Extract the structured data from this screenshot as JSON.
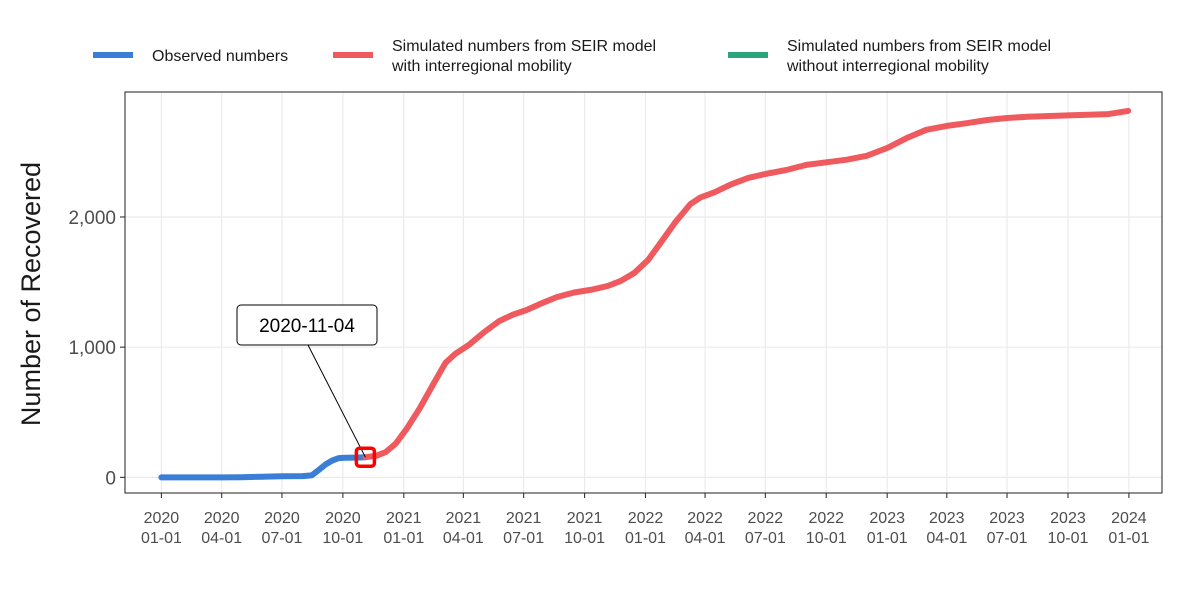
{
  "chart_data": {
    "type": "line",
    "ylabel": "Number of Recovered",
    "xlabel": "",
    "xlim": [
      "2019-11-07",
      "2024-02-20"
    ],
    "ylim": [
      -120,
      2960
    ],
    "grid": true,
    "legend_position": "top",
    "x_ticks": [
      {
        "date": "2020-01-01",
        "line1": "2020",
        "line2": "01-01"
      },
      {
        "date": "2020-04-01",
        "line1": "2020",
        "line2": "04-01"
      },
      {
        "date": "2020-07-01",
        "line1": "2020",
        "line2": "07-01"
      },
      {
        "date": "2020-10-01",
        "line1": "2020",
        "line2": "10-01"
      },
      {
        "date": "2021-01-01",
        "line1": "2021",
        "line2": "01-01"
      },
      {
        "date": "2021-04-01",
        "line1": "2021",
        "line2": "04-01"
      },
      {
        "date": "2021-07-01",
        "line1": "2021",
        "line2": "07-01"
      },
      {
        "date": "2021-10-01",
        "line1": "2021",
        "line2": "10-01"
      },
      {
        "date": "2022-01-01",
        "line1": "2022",
        "line2": "01-01"
      },
      {
        "date": "2022-04-01",
        "line1": "2022",
        "line2": "04-01"
      },
      {
        "date": "2022-07-01",
        "line1": "2022",
        "line2": "07-01"
      },
      {
        "date": "2022-10-01",
        "line1": "2022",
        "line2": "10-01"
      },
      {
        "date": "2023-01-01",
        "line1": "2023",
        "line2": "01-01"
      },
      {
        "date": "2023-04-01",
        "line1": "2023",
        "line2": "04-01"
      },
      {
        "date": "2023-07-01",
        "line1": "2023",
        "line2": "07-01"
      },
      {
        "date": "2023-10-01",
        "line1": "2023",
        "line2": "10-01"
      },
      {
        "date": "2024-01-01",
        "line1": "2024",
        "line2": "01-01"
      }
    ],
    "y_ticks": [
      {
        "value": 0,
        "label": "0"
      },
      {
        "value": 1000,
        "label": "1,000"
      },
      {
        "value": 2000,
        "label": "2,000"
      }
    ],
    "series": [
      {
        "name": "Observed numbers",
        "name_lines": [
          "Observed numbers"
        ],
        "color": "#3a7fd5",
        "points": [
          [
            "2020-01-01",
            0
          ],
          [
            "2020-02-01",
            0
          ],
          [
            "2020-03-01",
            0
          ],
          [
            "2020-04-01",
            0
          ],
          [
            "2020-05-01",
            1
          ],
          [
            "2020-06-01",
            5
          ],
          [
            "2020-07-01",
            8
          ],
          [
            "2020-08-01",
            10
          ],
          [
            "2020-08-15",
            15
          ],
          [
            "2020-08-25",
            55
          ],
          [
            "2020-09-05",
            100
          ],
          [
            "2020-09-15",
            130
          ],
          [
            "2020-09-25",
            148
          ],
          [
            "2020-10-05",
            150
          ],
          [
            "2020-10-20",
            152
          ],
          [
            "2020-11-04",
            155
          ]
        ]
      },
      {
        "name": "Simulated numbers from SEIR model with interregional mobility",
        "name_lines": [
          "Simulated numbers from SEIR model",
          "with interregional mobility"
        ],
        "color": "#ef5a5f",
        "points": [
          [
            "2020-11-04",
            155
          ],
          [
            "2020-11-20",
            165
          ],
          [
            "2020-12-05",
            195
          ],
          [
            "2020-12-20",
            260
          ],
          [
            "2021-01-05",
            370
          ],
          [
            "2021-01-25",
            530
          ],
          [
            "2021-02-15",
            720
          ],
          [
            "2021-03-05",
            880
          ],
          [
            "2021-03-20",
            950
          ],
          [
            "2021-04-10",
            1020
          ],
          [
            "2021-05-01",
            1110
          ],
          [
            "2021-05-25",
            1200
          ],
          [
            "2021-06-15",
            1250
          ],
          [
            "2021-07-05",
            1285
          ],
          [
            "2021-07-25",
            1330
          ],
          [
            "2021-08-20",
            1385
          ],
          [
            "2021-09-15",
            1420
          ],
          [
            "2021-10-10",
            1440
          ],
          [
            "2021-11-05",
            1470
          ],
          [
            "2021-11-25",
            1510
          ],
          [
            "2021-12-15",
            1570
          ],
          [
            "2022-01-05",
            1670
          ],
          [
            "2022-01-25",
            1810
          ],
          [
            "2022-02-15",
            1960
          ],
          [
            "2022-03-10",
            2100
          ],
          [
            "2022-03-25",
            2150
          ],
          [
            "2022-04-15",
            2190
          ],
          [
            "2022-05-10",
            2250
          ],
          [
            "2022-06-05",
            2300
          ],
          [
            "2022-07-01",
            2330
          ],
          [
            "2022-08-01",
            2360
          ],
          [
            "2022-09-01",
            2400
          ],
          [
            "2022-10-01",
            2420
          ],
          [
            "2022-11-01",
            2440
          ],
          [
            "2022-12-01",
            2470
          ],
          [
            "2023-01-01",
            2530
          ],
          [
            "2023-02-01",
            2610
          ],
          [
            "2023-03-01",
            2670
          ],
          [
            "2023-04-01",
            2700
          ],
          [
            "2023-05-01",
            2720
          ],
          [
            "2023-06-01",
            2745
          ],
          [
            "2023-07-01",
            2760
          ],
          [
            "2023-08-01",
            2770
          ],
          [
            "2023-10-01",
            2780
          ],
          [
            "2023-12-01",
            2790
          ],
          [
            "2023-12-31",
            2815
          ]
        ]
      },
      {
        "name": "Simulated numbers from SEIR model without interregional mobility",
        "name_lines": [
          "Simulated numbers from SEIR model",
          "without interregional mobility"
        ],
        "color": "#2ba67c",
        "points": []
      }
    ],
    "annotation": {
      "label": "2020-11-04",
      "date": "2020-11-04",
      "value": 155,
      "marker_color": "#ff0000"
    }
  }
}
